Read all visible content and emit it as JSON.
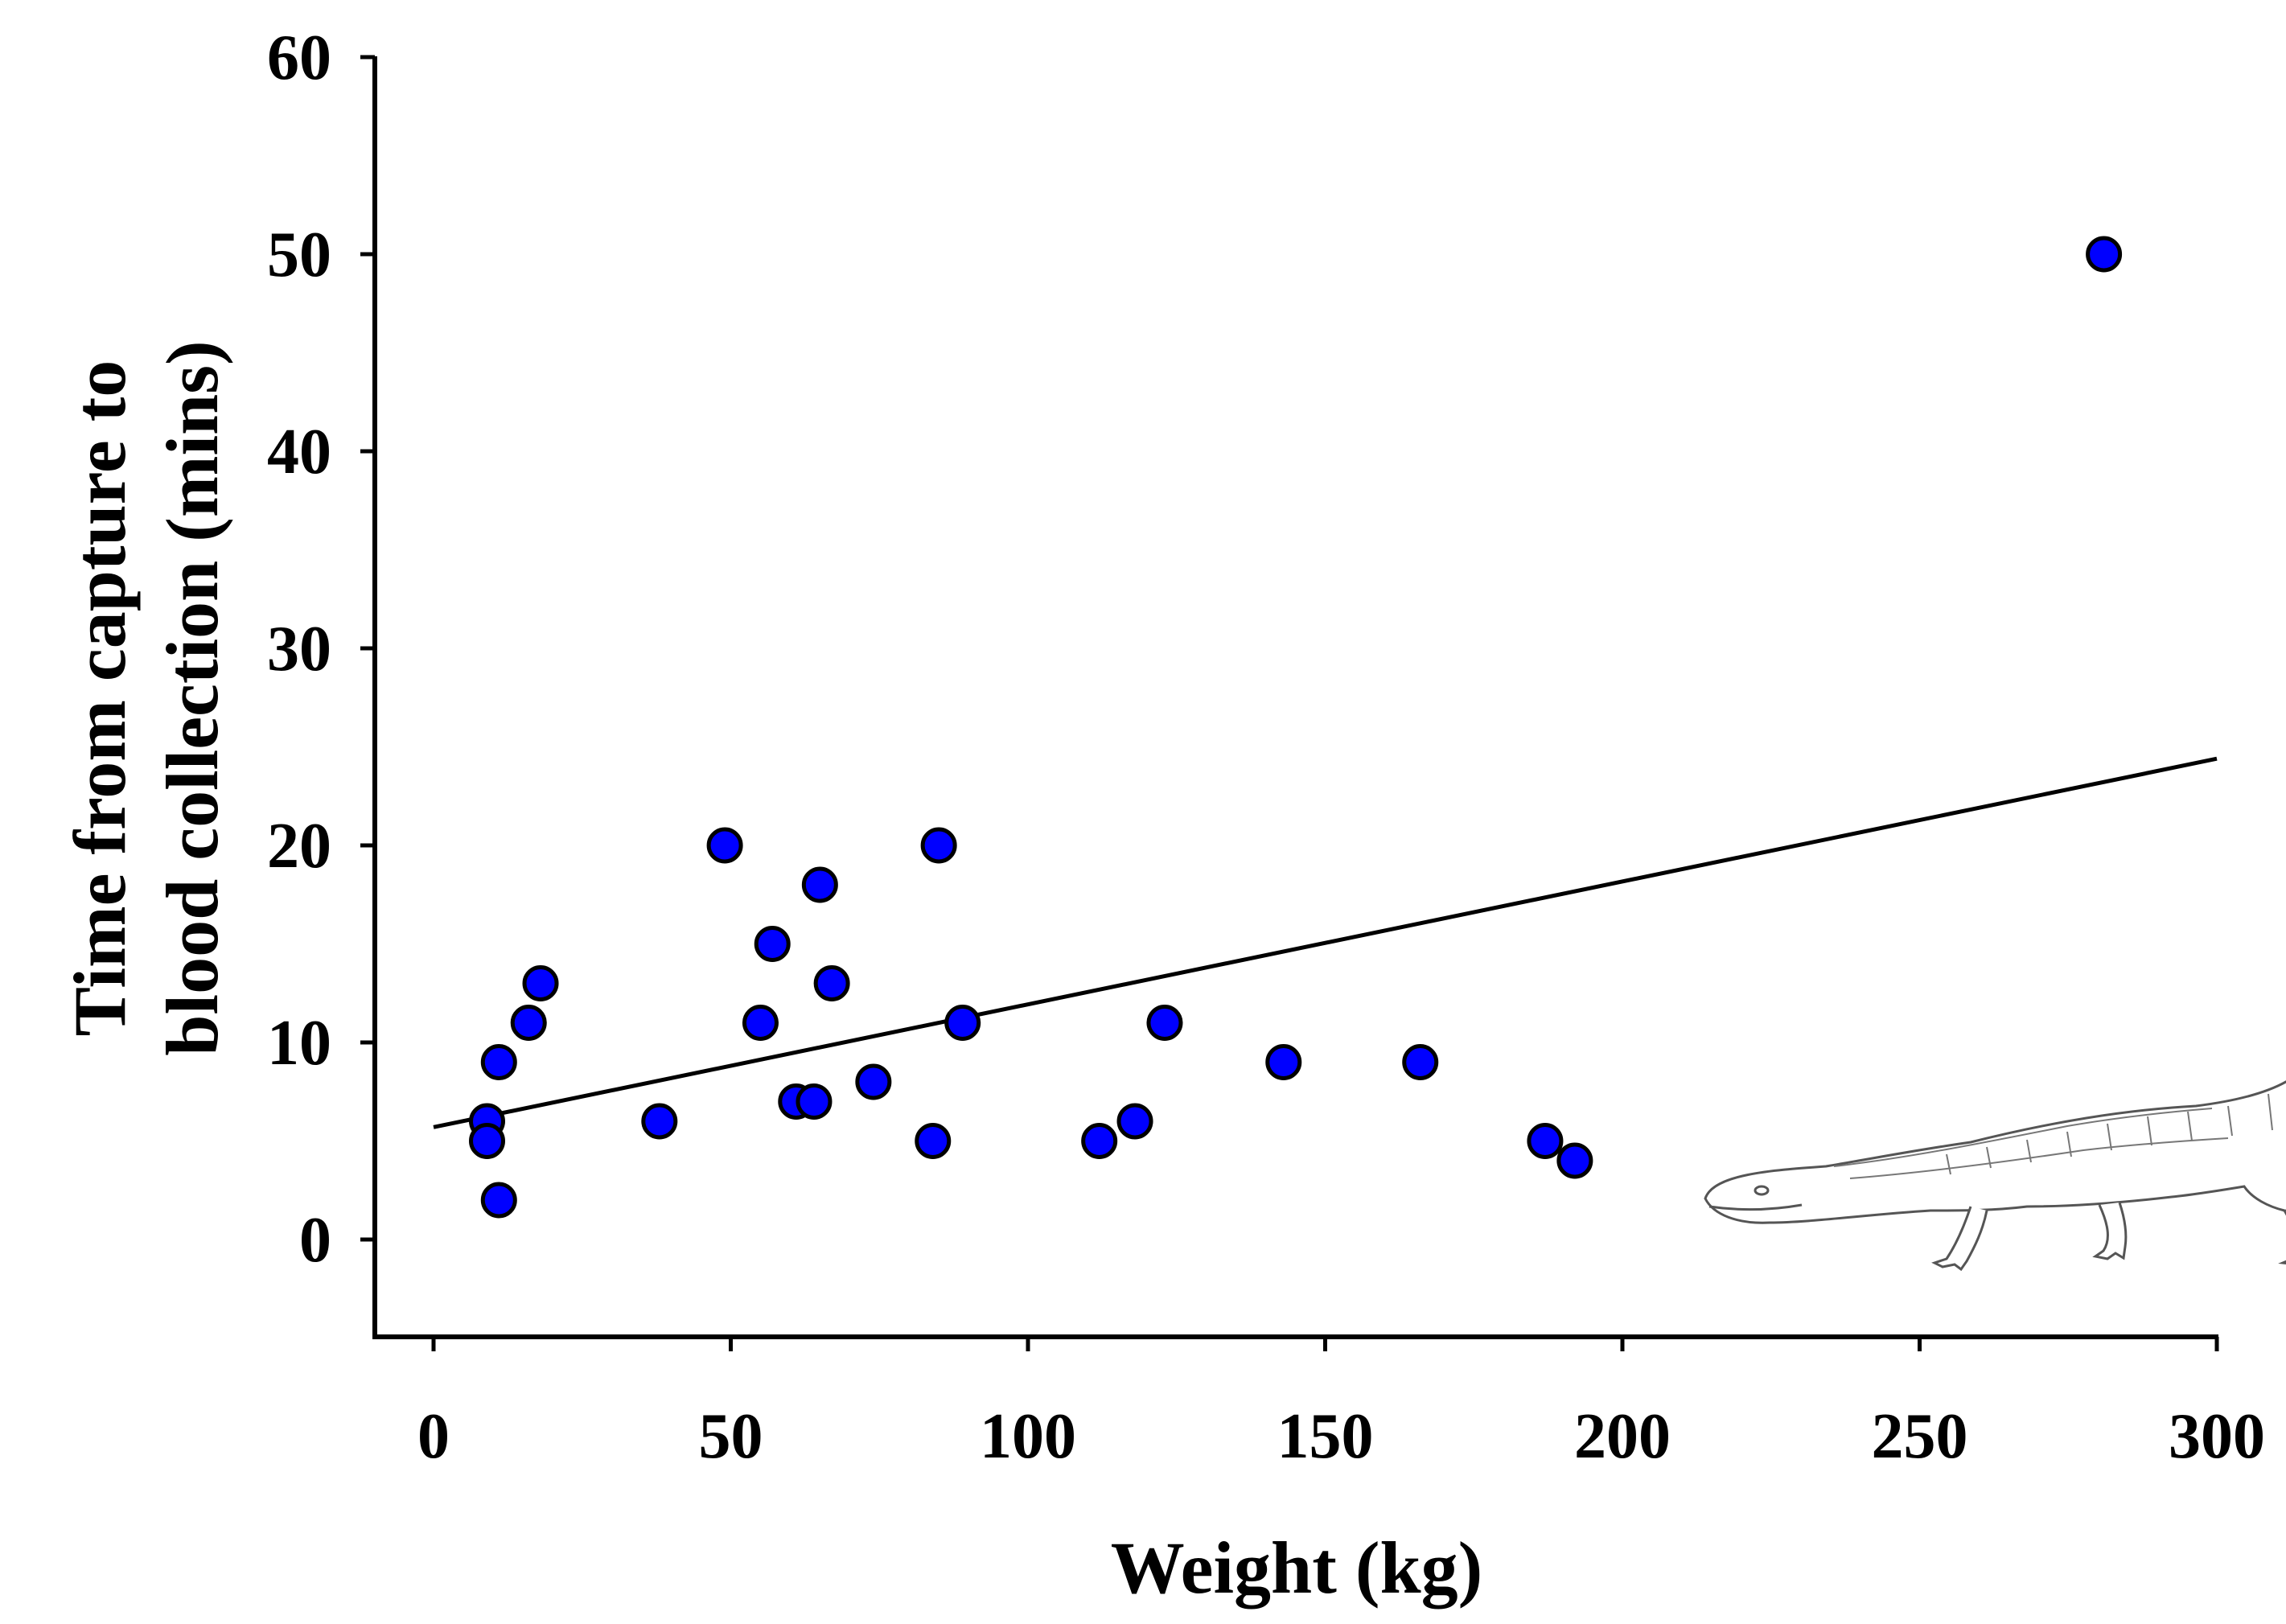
{
  "chart_data": {
    "type": "scatter",
    "title": "",
    "xlabel": "Weight (kg)",
    "ylabel_lines": [
      "Time from capture to",
      "blood collection (mins)"
    ],
    "xlim": [
      -10,
      300
    ],
    "ylim": [
      -5,
      60
    ],
    "xticks": [
      0,
      50,
      100,
      150,
      200,
      250,
      300
    ],
    "yticks": [
      0,
      10,
      20,
      30,
      40,
      50,
      60
    ],
    "xtick_labels": [
      "0",
      "50",
      "100",
      "150",
      "200",
      "250",
      "300"
    ],
    "ytick_labels": [
      "0",
      "10",
      "20",
      "30",
      "40",
      "50",
      "60"
    ],
    "grid": false,
    "series": [
      {
        "name": "crocodiles",
        "color": "#0000ff",
        "points": [
          {
            "x": 9,
            "y": 6
          },
          {
            "x": 9,
            "y": 5
          },
          {
            "x": 11,
            "y": 2
          },
          {
            "x": 11,
            "y": 9
          },
          {
            "x": 16,
            "y": 11
          },
          {
            "x": 18,
            "y": 13
          },
          {
            "x": 38,
            "y": 6
          },
          {
            "x": 49,
            "y": 20
          },
          {
            "x": 55,
            "y": 11
          },
          {
            "x": 57,
            "y": 15
          },
          {
            "x": 61,
            "y": 7
          },
          {
            "x": 64,
            "y": 7
          },
          {
            "x": 65,
            "y": 18
          },
          {
            "x": 67,
            "y": 13
          },
          {
            "x": 74,
            "y": 8
          },
          {
            "x": 84,
            "y": 5
          },
          {
            "x": 85,
            "y": 20
          },
          {
            "x": 89,
            "y": 11
          },
          {
            "x": 112,
            "y": 5
          },
          {
            "x": 118,
            "y": 6
          },
          {
            "x": 123,
            "y": 11
          },
          {
            "x": 143,
            "y": 9
          },
          {
            "x": 166,
            "y": 9
          },
          {
            "x": 187,
            "y": 5
          },
          {
            "x": 192,
            "y": 4
          },
          {
            "x": 281,
            "y": 50
          }
        ]
      }
    ],
    "trendline": {
      "x": [
        0,
        300
      ],
      "y": [
        5.7,
        24.4
      ]
    },
    "illustration": "crocodile-drawing"
  }
}
